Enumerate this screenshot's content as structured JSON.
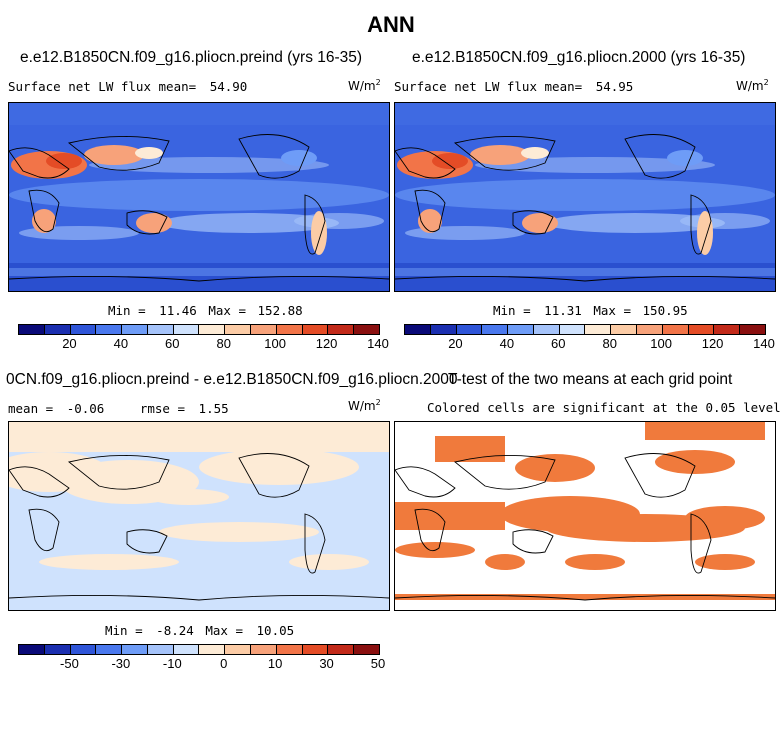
{
  "title": "ANN",
  "panels": {
    "preind": {
      "title": "e.e12.B1850CN.f09_g16.pliocn.preind (yrs 16-35)",
      "variable_label": "Surface net LW flux mean=",
      "mean": "54.90",
      "units_base": "W/m",
      "units_exp": "2",
      "min_label": "Min =",
      "min": "11.46",
      "max_label": "Max =",
      "max": "152.88"
    },
    "y2000": {
      "title": "e.e12.B1850CN.f09_g16.pliocn.2000 (yrs 16-35)",
      "variable_label": "Surface net LW flux mean=",
      "mean": "54.95",
      "units_base": "W/m",
      "units_exp": "2",
      "min_label": "Min =",
      "min": "11.31",
      "max_label": "Max =",
      "max": "150.95"
    },
    "diff": {
      "title": "0CN.f09_g16.pliocn.preind - e.e12.B1850CN.f09_g16.pliocn.2000",
      "mean_label": "mean =",
      "mean": "-0.06",
      "rmse_label": "rmse =",
      "rmse": "1.55",
      "units_base": "W/m",
      "units_exp": "2",
      "min_label": "Min =",
      "min": "-8.24",
      "max_label": "Max =",
      "max": "10.05"
    },
    "ttest": {
      "title": "T-test of the two means at each grid point",
      "subtitle": "Colored cells are significant at the 0.05 level",
      "color": "#f07a3c"
    }
  },
  "colorbars": {
    "absolute": {
      "colors": [
        "#0a0a78",
        "#1b2fb0",
        "#2f55d8",
        "#4a78ee",
        "#6e9cf7",
        "#a5c3fa",
        "#cfe2fd",
        "#fdebd6",
        "#fccca6",
        "#f7a27a",
        "#f27448",
        "#e44c26",
        "#c22a1a",
        "#8a1010"
      ],
      "ticks": [
        "20",
        "40",
        "60",
        "80",
        "100",
        "120",
        "140"
      ]
    },
    "difference": {
      "colors": [
        "#0a0a78",
        "#1b2fb0",
        "#2f55d8",
        "#4a78ee",
        "#6e9cf7",
        "#a5c3fa",
        "#cfe2fd",
        "#fdebd6",
        "#fccca6",
        "#f7a27a",
        "#f27448",
        "#e44c26",
        "#c22a1a",
        "#8a1010"
      ],
      "ticks": [
        "-50",
        "-30",
        "-10",
        "0",
        "10",
        "30",
        "50"
      ]
    }
  }
}
